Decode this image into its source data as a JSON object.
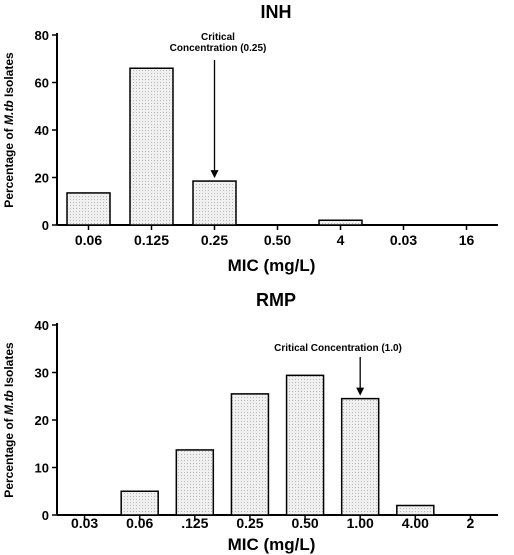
{
  "chart_data": [
    {
      "type": "bar",
      "title": "INH",
      "xlabel": "MIC (mg/L)",
      "ylabel": "Percentage of M.tb Isolates",
      "ylabel_parts": [
        "Percentage of ",
        "M.tb",
        " Isolates"
      ],
      "categories": [
        "0.06",
        "0.125",
        "0.25",
        "0.50",
        "4",
        "0.03",
        "16"
      ],
      "values": [
        13.5,
        66,
        18.5,
        0,
        2,
        0,
        0
      ],
      "ylim": [
        0,
        80
      ],
      "yticks": [
        "0",
        "20",
        "40",
        "60",
        "80"
      ],
      "bar_fill": "#e6e6e6",
      "annotation": {
        "lines": [
          "Critical",
          "Concentration (0.25)"
        ],
        "target_category": "0.25"
      }
    },
    {
      "type": "bar",
      "title": "RMP",
      "xlabel": "MIC (mg/L)",
      "ylabel": "Percentage of M.tb Isolates",
      "ylabel_parts": [
        "Percentage of ",
        "M.tb",
        " Isolates"
      ],
      "categories": [
        "0.03",
        "0.06",
        ".125",
        "0.25",
        "0.50",
        "1.00",
        "4.00",
        "2"
      ],
      "values": [
        0,
        5,
        13.7,
        25.5,
        29.4,
        24.5,
        2,
        0
      ],
      "ylim": [
        0,
        40
      ],
      "yticks": [
        "0",
        "10",
        "20",
        "30",
        "40"
      ],
      "bar_fill": "#e6e6e6",
      "annotation": {
        "lines": [
          "Critical Concentration (1.0)"
        ],
        "target_category": "1.00"
      }
    }
  ]
}
